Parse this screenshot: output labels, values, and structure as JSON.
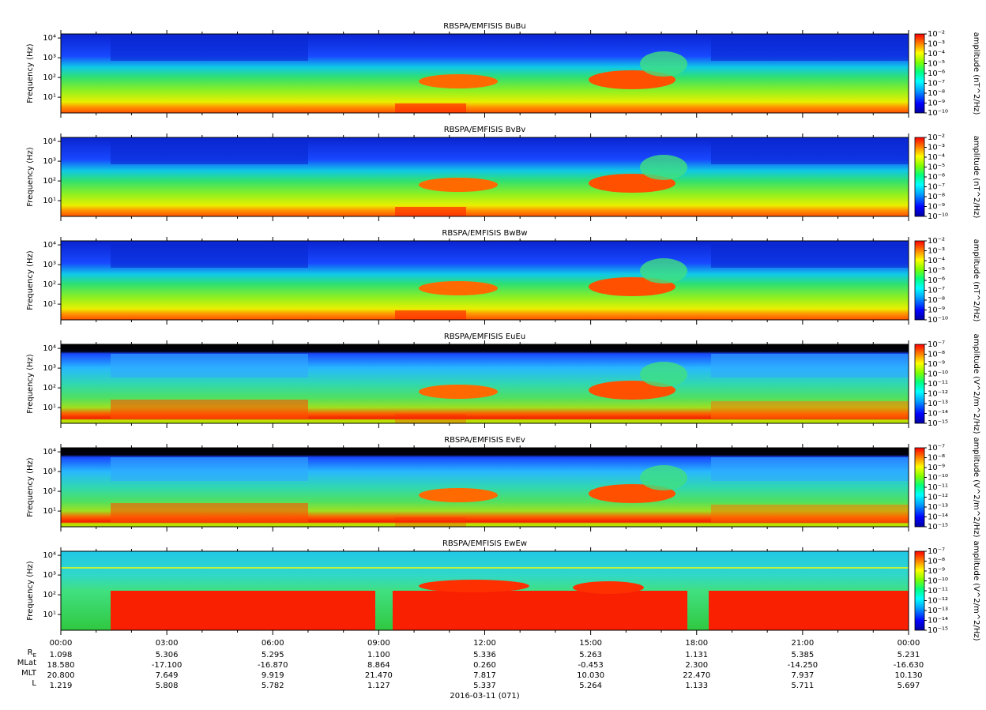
{
  "chart_data": [
    {
      "type": "spectrogram",
      "title": "RBSPA/EMFISIS  BuBu",
      "ylabel": "Frequency (Hz)",
      "ylog": true,
      "ylim": [
        1.6,
        16000
      ],
      "yticks": [
        {
          "value": 10,
          "label": "10¹"
        },
        {
          "value": 100,
          "label": "10²"
        },
        {
          "value": 1000,
          "label": "10³"
        },
        {
          "value": 10000,
          "label": "10⁴"
        }
      ],
      "zlabel": "amplitude (nT^2/Hz)",
      "zlog": true,
      "zlim": [
        1e-10,
        0.01
      ],
      "zticks": [
        {
          "value": 1e-10,
          "label": "10⁻¹⁰"
        },
        {
          "value": 1e-09,
          "label": "10⁻⁹"
        },
        {
          "value": 1e-08,
          "label": "10⁻⁸"
        },
        {
          "value": 1e-07,
          "label": "10⁻⁷"
        },
        {
          "value": 1e-06,
          "label": "10⁻⁶"
        },
        {
          "value": 1e-05,
          "label": "10⁻⁵"
        },
        {
          "value": 0.0001,
          "label": "10⁻⁴"
        },
        {
          "value": 0.001,
          "label": "10⁻³"
        },
        {
          "value": 0.01,
          "label": "10⁻²"
        }
      ]
    },
    {
      "type": "spectrogram",
      "title": "RBSPA/EMFISIS  BvBv",
      "ylabel": "Frequency (Hz)",
      "ylog": true,
      "ylim": [
        1.6,
        16000
      ],
      "yticks": [
        {
          "value": 10,
          "label": "10¹"
        },
        {
          "value": 100,
          "label": "10²"
        },
        {
          "value": 1000,
          "label": "10³"
        },
        {
          "value": 10000,
          "label": "10⁴"
        }
      ],
      "zlabel": "amplitude (nT^2/Hz)",
      "zlog": true,
      "zlim": [
        1e-10,
        0.01
      ],
      "zticks": [
        {
          "value": 1e-10,
          "label": "10⁻¹⁰"
        },
        {
          "value": 1e-09,
          "label": "10⁻⁹"
        },
        {
          "value": 1e-08,
          "label": "10⁻⁸"
        },
        {
          "value": 1e-07,
          "label": "10⁻⁷"
        },
        {
          "value": 1e-06,
          "label": "10⁻⁶"
        },
        {
          "value": 1e-05,
          "label": "10⁻⁵"
        },
        {
          "value": 0.0001,
          "label": "10⁻⁴"
        },
        {
          "value": 0.001,
          "label": "10⁻³"
        },
        {
          "value": 0.01,
          "label": "10⁻²"
        }
      ]
    },
    {
      "type": "spectrogram",
      "title": "RBSPA/EMFISIS  BwBw",
      "ylabel": "Frequency (Hz)",
      "ylog": true,
      "ylim": [
        1.6,
        16000
      ],
      "yticks": [
        {
          "value": 10,
          "label": "10¹"
        },
        {
          "value": 100,
          "label": "10²"
        },
        {
          "value": 1000,
          "label": "10³"
        },
        {
          "value": 10000,
          "label": "10⁴"
        }
      ],
      "zlabel": "amplitude (nT^2/Hz)",
      "zlog": true,
      "zlim": [
        1e-10,
        0.01
      ],
      "zticks": [
        {
          "value": 1e-10,
          "label": "10⁻¹⁰"
        },
        {
          "value": 1e-09,
          "label": "10⁻⁹"
        },
        {
          "value": 1e-08,
          "label": "10⁻⁸"
        },
        {
          "value": 1e-07,
          "label": "10⁻⁷"
        },
        {
          "value": 1e-06,
          "label": "10⁻⁶"
        },
        {
          "value": 1e-05,
          "label": "10⁻⁵"
        },
        {
          "value": 0.0001,
          "label": "10⁻⁴"
        },
        {
          "value": 0.001,
          "label": "10⁻³"
        },
        {
          "value": 0.01,
          "label": "10⁻²"
        }
      ]
    },
    {
      "type": "spectrogram",
      "title": "RBSPA/EMFISIS  EuEu",
      "ylabel": "Frequency (Hz)",
      "ylog": true,
      "ylim": [
        1.6,
        16000
      ],
      "yticks": [
        {
          "value": 10,
          "label": "10¹"
        },
        {
          "value": 100,
          "label": "10²"
        },
        {
          "value": 1000,
          "label": "10³"
        },
        {
          "value": 10000,
          "label": "10⁴"
        }
      ],
      "zlabel": "amplitude (V^2/m^2/Hz)",
      "zlog": true,
      "zlim": [
        1e-15,
        1e-07
      ],
      "zticks": [
        {
          "value": 1e-15,
          "label": "10⁻¹⁵"
        },
        {
          "value": 1e-14,
          "label": "10⁻¹⁴"
        },
        {
          "value": 1e-13,
          "label": "10⁻¹³"
        },
        {
          "value": 1e-12,
          "label": "10⁻¹²"
        },
        {
          "value": 1e-11,
          "label": "10⁻¹¹"
        },
        {
          "value": 1e-10,
          "label": "10⁻¹⁰"
        },
        {
          "value": 1e-09,
          "label": "10⁻⁹"
        },
        {
          "value": 1e-08,
          "label": "10⁻⁸"
        },
        {
          "value": 1e-07,
          "label": "10⁻⁷"
        }
      ]
    },
    {
      "type": "spectrogram",
      "title": "RBSPA/EMFISIS  EvEv",
      "ylabel": "Frequency (Hz)",
      "ylog": true,
      "ylim": [
        1.6,
        16000
      ],
      "yticks": [
        {
          "value": 10,
          "label": "10¹"
        },
        {
          "value": 100,
          "label": "10²"
        },
        {
          "value": 1000,
          "label": "10³"
        },
        {
          "value": 10000,
          "label": "10⁴"
        }
      ],
      "zlabel": "amplitude (V^2/m^2/Hz)",
      "zlog": true,
      "zlim": [
        1e-15,
        1e-07
      ],
      "zticks": [
        {
          "value": 1e-15,
          "label": "10⁻¹⁵"
        },
        {
          "value": 1e-14,
          "label": "10⁻¹⁴"
        },
        {
          "value": 1e-13,
          "label": "10⁻¹³"
        },
        {
          "value": 1e-12,
          "label": "10⁻¹²"
        },
        {
          "value": 1e-11,
          "label": "10⁻¹¹"
        },
        {
          "value": 1e-10,
          "label": "10⁻¹⁰"
        },
        {
          "value": 1e-09,
          "label": "10⁻⁹"
        },
        {
          "value": 1e-08,
          "label": "10⁻⁸"
        },
        {
          "value": 1e-07,
          "label": "10⁻⁷"
        }
      ]
    },
    {
      "type": "spectrogram",
      "title": "RBSPA/EMFISIS  EwEw",
      "ylabel": "Frequency (Hz)",
      "ylog": true,
      "ylim": [
        1.6,
        16000
      ],
      "yticks": [
        {
          "value": 10,
          "label": "10¹"
        },
        {
          "value": 100,
          "label": "10²"
        },
        {
          "value": 1000,
          "label": "10³"
        },
        {
          "value": 10000,
          "label": "10⁴"
        }
      ],
      "zlabel": "amplitude (V^2/m^2/Hz)",
      "zlog": true,
      "zlim": [
        1e-15,
        1e-07
      ],
      "zticks": [
        {
          "value": 1e-15,
          "label": "10⁻¹⁵"
        },
        {
          "value": 1e-14,
          "label": "10⁻¹⁴"
        },
        {
          "value": 1e-13,
          "label": "10⁻¹³"
        },
        {
          "value": 1e-12,
          "label": "10⁻¹²"
        },
        {
          "value": 1e-11,
          "label": "10⁻¹¹"
        },
        {
          "value": 1e-10,
          "label": "10⁻¹⁰"
        },
        {
          "value": 1e-09,
          "label": "10⁻⁹"
        },
        {
          "value": 1e-08,
          "label": "10⁻⁸"
        },
        {
          "value": 1e-07,
          "label": "10⁻⁷"
        }
      ]
    }
  ],
  "xaxis": {
    "xlim": [
      0,
      24
    ],
    "xticks": [
      {
        "value": 0,
        "label": "00:00"
      },
      {
        "value": 3,
        "label": "03:00"
      },
      {
        "value": 6,
        "label": "06:00"
      },
      {
        "value": 9,
        "label": "09:00"
      },
      {
        "value": 12,
        "label": "12:00"
      },
      {
        "value": 15,
        "label": "15:00"
      },
      {
        "value": 18,
        "label": "18:00"
      },
      {
        "value": 21,
        "label": "21:00"
      },
      {
        "value": 24,
        "label": "00:00"
      }
    ],
    "xminor_ticks": [
      1,
      2,
      4,
      5,
      7,
      8,
      10,
      11,
      13,
      14,
      16,
      17,
      19,
      20,
      22,
      23
    ],
    "date": "2016-03-11 (071)"
  },
  "ephemeris": [
    {
      "name": "R",
      "subscript": "E",
      "values": [
        "1.098",
        "5.306",
        "5.295",
        "1.100",
        "5.336",
        "5.263",
        "1.131",
        "5.385",
        "5.231"
      ]
    },
    {
      "name": "MLat",
      "values": [
        "18.580",
        "-17.100",
        "-16.870",
        "8.864",
        "0.260",
        "-0.453",
        "2.300",
        "-14.250",
        "-16.630"
      ]
    },
    {
      "name": "MLT",
      "values": [
        "20.800",
        "7.649",
        "9.919",
        "21.470",
        "7.817",
        "10.030",
        "22.470",
        "7.937",
        "10.130"
      ]
    },
    {
      "name": "L",
      "values": [
        "1.219",
        "5.808",
        "5.782",
        "1.127",
        "5.337",
        "5.264",
        "1.133",
        "5.711",
        "5.697"
      ]
    }
  ]
}
